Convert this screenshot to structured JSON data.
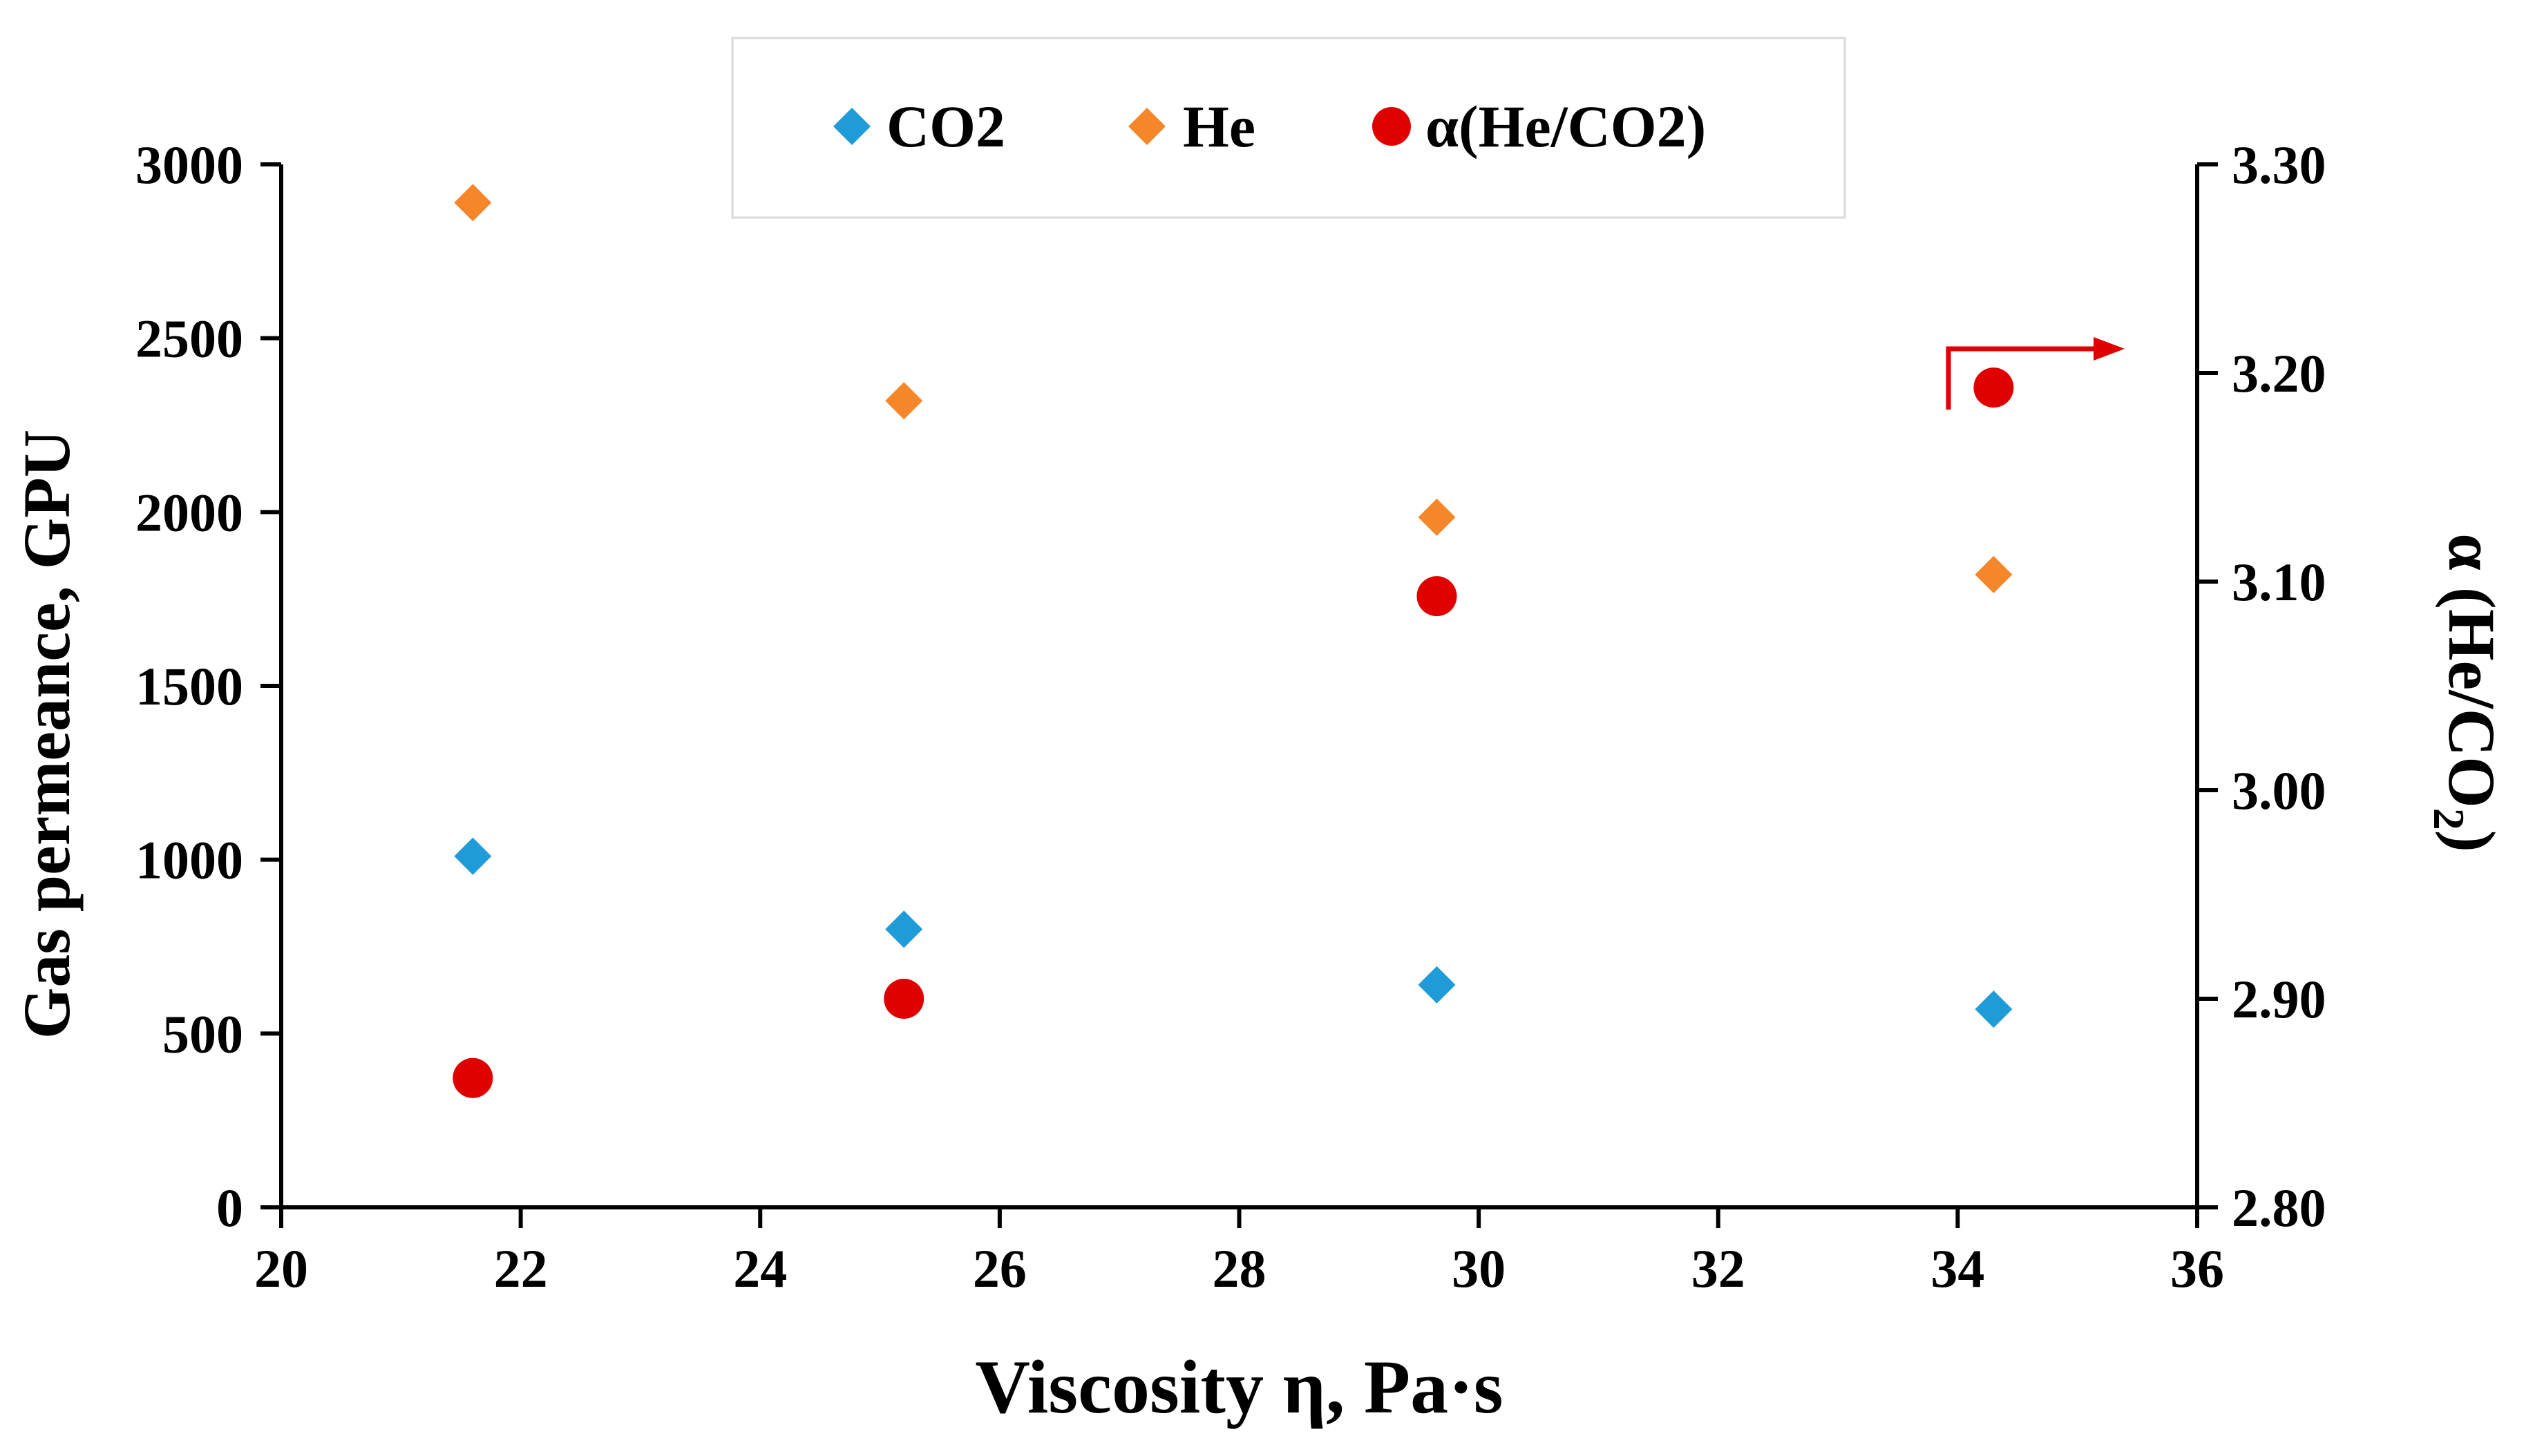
{
  "chart_data": {
    "type": "scatter",
    "x": [
      21.6,
      25.2,
      29.65,
      34.3
    ],
    "xlabel": "Viscosity η, Pa·s",
    "ylabel": "Gas permeance, GPU",
    "y2label_main": "α (He/CO",
    "y2label_sub": "2",
    "y2label_end": ")",
    "xlim": [
      20,
      36
    ],
    "ylim": [
      0,
      3000
    ],
    "y2lim": [
      2.8,
      3.3
    ],
    "xticks": [
      "20",
      "22",
      "24",
      "26",
      "28",
      "30",
      "32",
      "34",
      "36"
    ],
    "yticks": [
      "0",
      "500",
      "1000",
      "1500",
      "2000",
      "2500",
      "3000"
    ],
    "y2ticks": [
      "2.80",
      "2.90",
      "3.00",
      "3.10",
      "3.20",
      "3.30"
    ],
    "legend_position": "top-center",
    "grid": false,
    "series": [
      {
        "name": "CO2",
        "axis": "left",
        "marker": "diamond",
        "color": "#1F9BD7",
        "values": [
          1010,
          800,
          640,
          570
        ]
      },
      {
        "name": "He",
        "axis": "left",
        "marker": "diamond",
        "color": "#F5862A",
        "values": [
          2890,
          2320,
          1985,
          1820
        ]
      },
      {
        "name": "α(He/CO2)",
        "axis": "right",
        "marker": "circle",
        "color": "#E00000",
        "values": [
          2.862,
          2.9,
          3.093,
          3.193
        ]
      }
    ],
    "annotations": [
      {
        "type": "arrow",
        "direction": "right",
        "meaning": "alpha series refers to right axis",
        "color": "#E00000"
      }
    ]
  }
}
